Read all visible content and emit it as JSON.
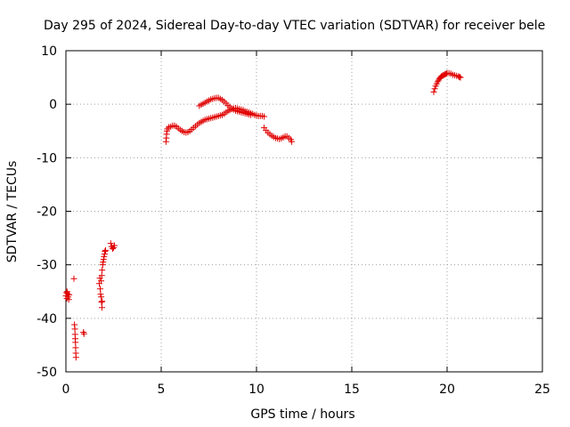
{
  "chart_data": {
    "type": "scatter",
    "title": "Day 295 of 2024, Sidereal Day-to-day VTEC variation (SDTVAR) for receiver bele",
    "xlabel": "GPS time / hours",
    "ylabel": "SDTVAR / TECUs",
    "xlim": [
      0,
      25
    ],
    "ylim": [
      -50,
      10
    ],
    "xticks": [
      0,
      5,
      10,
      15,
      20,
      25
    ],
    "xtick_labels": [
      "0",
      "5",
      "10",
      "15",
      "20",
      "25"
    ],
    "yticks": [
      -50,
      -40,
      -30,
      -20,
      -10,
      0,
      10
    ],
    "ytick_labels": [
      "-50",
      "-40",
      "-30",
      "-20",
      "-10",
      "0",
      "10"
    ],
    "grid": true,
    "marker": "+",
    "color": "#e00000",
    "series": [
      {
        "name": "SDTVAR",
        "segments": [
          [
            [
              0.0,
              -35.8
            ],
            [
              0.03,
              -35.2
            ],
            [
              0.06,
              -35.0
            ],
            [
              0.09,
              -35.4
            ],
            [
              0.12,
              -36.0
            ],
            [
              0.15,
              -36.5
            ],
            [
              0.17,
              -35.6
            ],
            [
              0.05,
              -36.3
            ]
          ],
          [
            [
              0.42,
              -32.6
            ]
          ],
          [
            [
              0.45,
              -41.2
            ],
            [
              0.47,
              -42.0
            ],
            [
              0.48,
              -43.0
            ],
            [
              0.49,
              -43.8
            ],
            [
              0.5,
              -44.5
            ],
            [
              0.51,
              -45.5
            ],
            [
              0.52,
              -46.5
            ],
            [
              0.53,
              -47.3
            ]
          ],
          [
            [
              0.92,
              -42.6
            ],
            [
              0.95,
              -42.9
            ]
          ],
          [
            [
              1.75,
              -33.5
            ],
            [
              1.78,
              -32.5
            ],
            [
              1.8,
              -34.5
            ],
            [
              1.82,
              -35.5
            ],
            [
              1.85,
              -33.0
            ],
            [
              1.88,
              -32.0
            ],
            [
              1.9,
              -31.0
            ],
            [
              1.93,
              -30.0
            ],
            [
              1.95,
              -29.5
            ],
            [
              1.98,
              -29.0
            ],
            [
              2.0,
              -28.5
            ],
            [
              2.03,
              -28.0
            ],
            [
              2.05,
              -27.5
            ],
            [
              2.08,
              -27.3
            ]
          ],
          [
            [
              1.85,
              -36.0
            ],
            [
              1.87,
              -37.0
            ],
            [
              1.89,
              -38.0
            ],
            [
              1.9,
              -36.8
            ]
          ],
          [
            [
              2.35,
              -26.0
            ],
            [
              2.4,
              -26.6
            ],
            [
              2.45,
              -27.0
            ],
            [
              2.5,
              -26.8
            ],
            [
              2.55,
              -26.4
            ]
          ],
          [
            [
              5.25,
              -7.0
            ],
            [
              5.27,
              -6.3
            ],
            [
              5.28,
              -5.6
            ],
            [
              5.3,
              -5.0
            ],
            [
              5.32,
              -4.6
            ],
            [
              5.4,
              -4.3
            ],
            [
              5.5,
              -4.2
            ],
            [
              5.6,
              -4.0
            ],
            [
              5.7,
              -4.0
            ],
            [
              5.8,
              -4.2
            ],
            [
              5.9,
              -4.5
            ],
            [
              6.0,
              -4.8
            ],
            [
              6.1,
              -5.0
            ],
            [
              6.2,
              -5.2
            ],
            [
              6.3,
              -5.3
            ],
            [
              6.4,
              -5.2
            ],
            [
              6.5,
              -5.0
            ],
            [
              6.6,
              -4.7
            ],
            [
              6.7,
              -4.4
            ],
            [
              6.8,
              -4.1
            ],
            [
              6.9,
              -3.8
            ],
            [
              7.0,
              -3.5
            ],
            [
              7.1,
              -3.3
            ],
            [
              7.2,
              -3.1
            ],
            [
              7.3,
              -2.9
            ],
            [
              7.4,
              -2.8
            ],
            [
              7.5,
              -2.7
            ],
            [
              7.6,
              -2.6
            ],
            [
              7.7,
              -2.5
            ],
            [
              7.8,
              -2.4
            ],
            [
              7.9,
              -2.3
            ],
            [
              8.0,
              -2.2
            ],
            [
              8.1,
              -2.1
            ],
            [
              8.2,
              -2.0
            ],
            [
              8.3,
              -1.8
            ],
            [
              8.4,
              -1.5
            ],
            [
              8.5,
              -1.3
            ],
            [
              8.6,
              -1.1
            ],
            [
              8.7,
              -0.9
            ],
            [
              8.8,
              -0.8
            ],
            [
              8.9,
              -0.7
            ],
            [
              9.0,
              -0.8
            ],
            [
              9.1,
              -0.9
            ],
            [
              9.2,
              -1.0
            ],
            [
              9.3,
              -1.1
            ],
            [
              9.4,
              -1.3
            ],
            [
              9.5,
              -1.4
            ],
            [
              9.6,
              -1.5
            ],
            [
              9.7,
              -1.7
            ],
            [
              9.8,
              -1.8
            ],
            [
              9.9,
              -2.0
            ],
            [
              10.0,
              -2.1
            ],
            [
              10.1,
              -2.2
            ],
            [
              10.2,
              -2.2
            ],
            [
              10.3,
              -2.2
            ],
            [
              10.4,
              -2.3
            ]
          ],
          [
            [
              7.0,
              -0.3
            ],
            [
              7.1,
              -0.1
            ],
            [
              7.2,
              0.1
            ],
            [
              7.3,
              0.3
            ],
            [
              7.4,
              0.5
            ],
            [
              7.5,
              0.7
            ],
            [
              7.6,
              0.9
            ],
            [
              7.7,
              1.0
            ],
            [
              7.8,
              1.1
            ],
            [
              7.9,
              1.2
            ],
            [
              8.0,
              1.2
            ],
            [
              8.1,
              1.0
            ],
            [
              8.2,
              0.8
            ],
            [
              8.3,
              0.5
            ],
            [
              8.4,
              0.2
            ],
            [
              8.5,
              -0.2
            ],
            [
              8.6,
              -0.5
            ],
            [
              8.7,
              -0.8
            ],
            [
              8.8,
              -1.0
            ],
            [
              8.9,
              -1.2
            ],
            [
              9.0,
              -1.3
            ],
            [
              9.1,
              -1.4
            ],
            [
              9.2,
              -1.5
            ],
            [
              9.3,
              -1.6
            ],
            [
              9.4,
              -1.7
            ],
            [
              9.5,
              -1.8
            ],
            [
              9.6,
              -1.9
            ],
            [
              9.7,
              -2.0
            ]
          ],
          [
            [
              10.4,
              -4.4
            ],
            [
              10.5,
              -4.9
            ],
            [
              10.6,
              -5.3
            ],
            [
              10.7,
              -5.6
            ],
            [
              10.8,
              -5.9
            ],
            [
              10.9,
              -6.1
            ],
            [
              11.0,
              -6.3
            ],
            [
              11.1,
              -6.4
            ],
            [
              11.2,
              -6.5
            ],
            [
              11.3,
              -6.4
            ],
            [
              11.4,
              -6.2
            ],
            [
              11.5,
              -6.0
            ],
            [
              11.6,
              -6.0
            ],
            [
              11.7,
              -6.3
            ],
            [
              11.8,
              -6.6
            ],
            [
              11.85,
              -7.0
            ]
          ],
          [
            [
              19.3,
              2.3
            ],
            [
              19.35,
              2.9
            ],
            [
              19.4,
              3.4
            ],
            [
              19.45,
              3.8
            ],
            [
              19.5,
              4.2
            ],
            [
              19.55,
              4.5
            ],
            [
              19.6,
              4.8
            ],
            [
              19.65,
              5.0
            ],
            [
              19.7,
              5.2
            ],
            [
              19.75,
              5.3
            ],
            [
              19.8,
              5.4
            ],
            [
              19.85,
              5.5
            ],
            [
              19.9,
              5.6
            ],
            [
              19.95,
              5.7
            ],
            [
              20.0,
              5.8
            ],
            [
              20.1,
              5.8
            ],
            [
              20.2,
              5.7
            ],
            [
              20.3,
              5.5
            ],
            [
              20.4,
              5.4
            ],
            [
              20.5,
              5.3
            ],
            [
              20.6,
              5.2
            ],
            [
              20.65,
              5.1
            ],
            [
              20.7,
              5.0
            ]
          ]
        ]
      }
    ]
  }
}
